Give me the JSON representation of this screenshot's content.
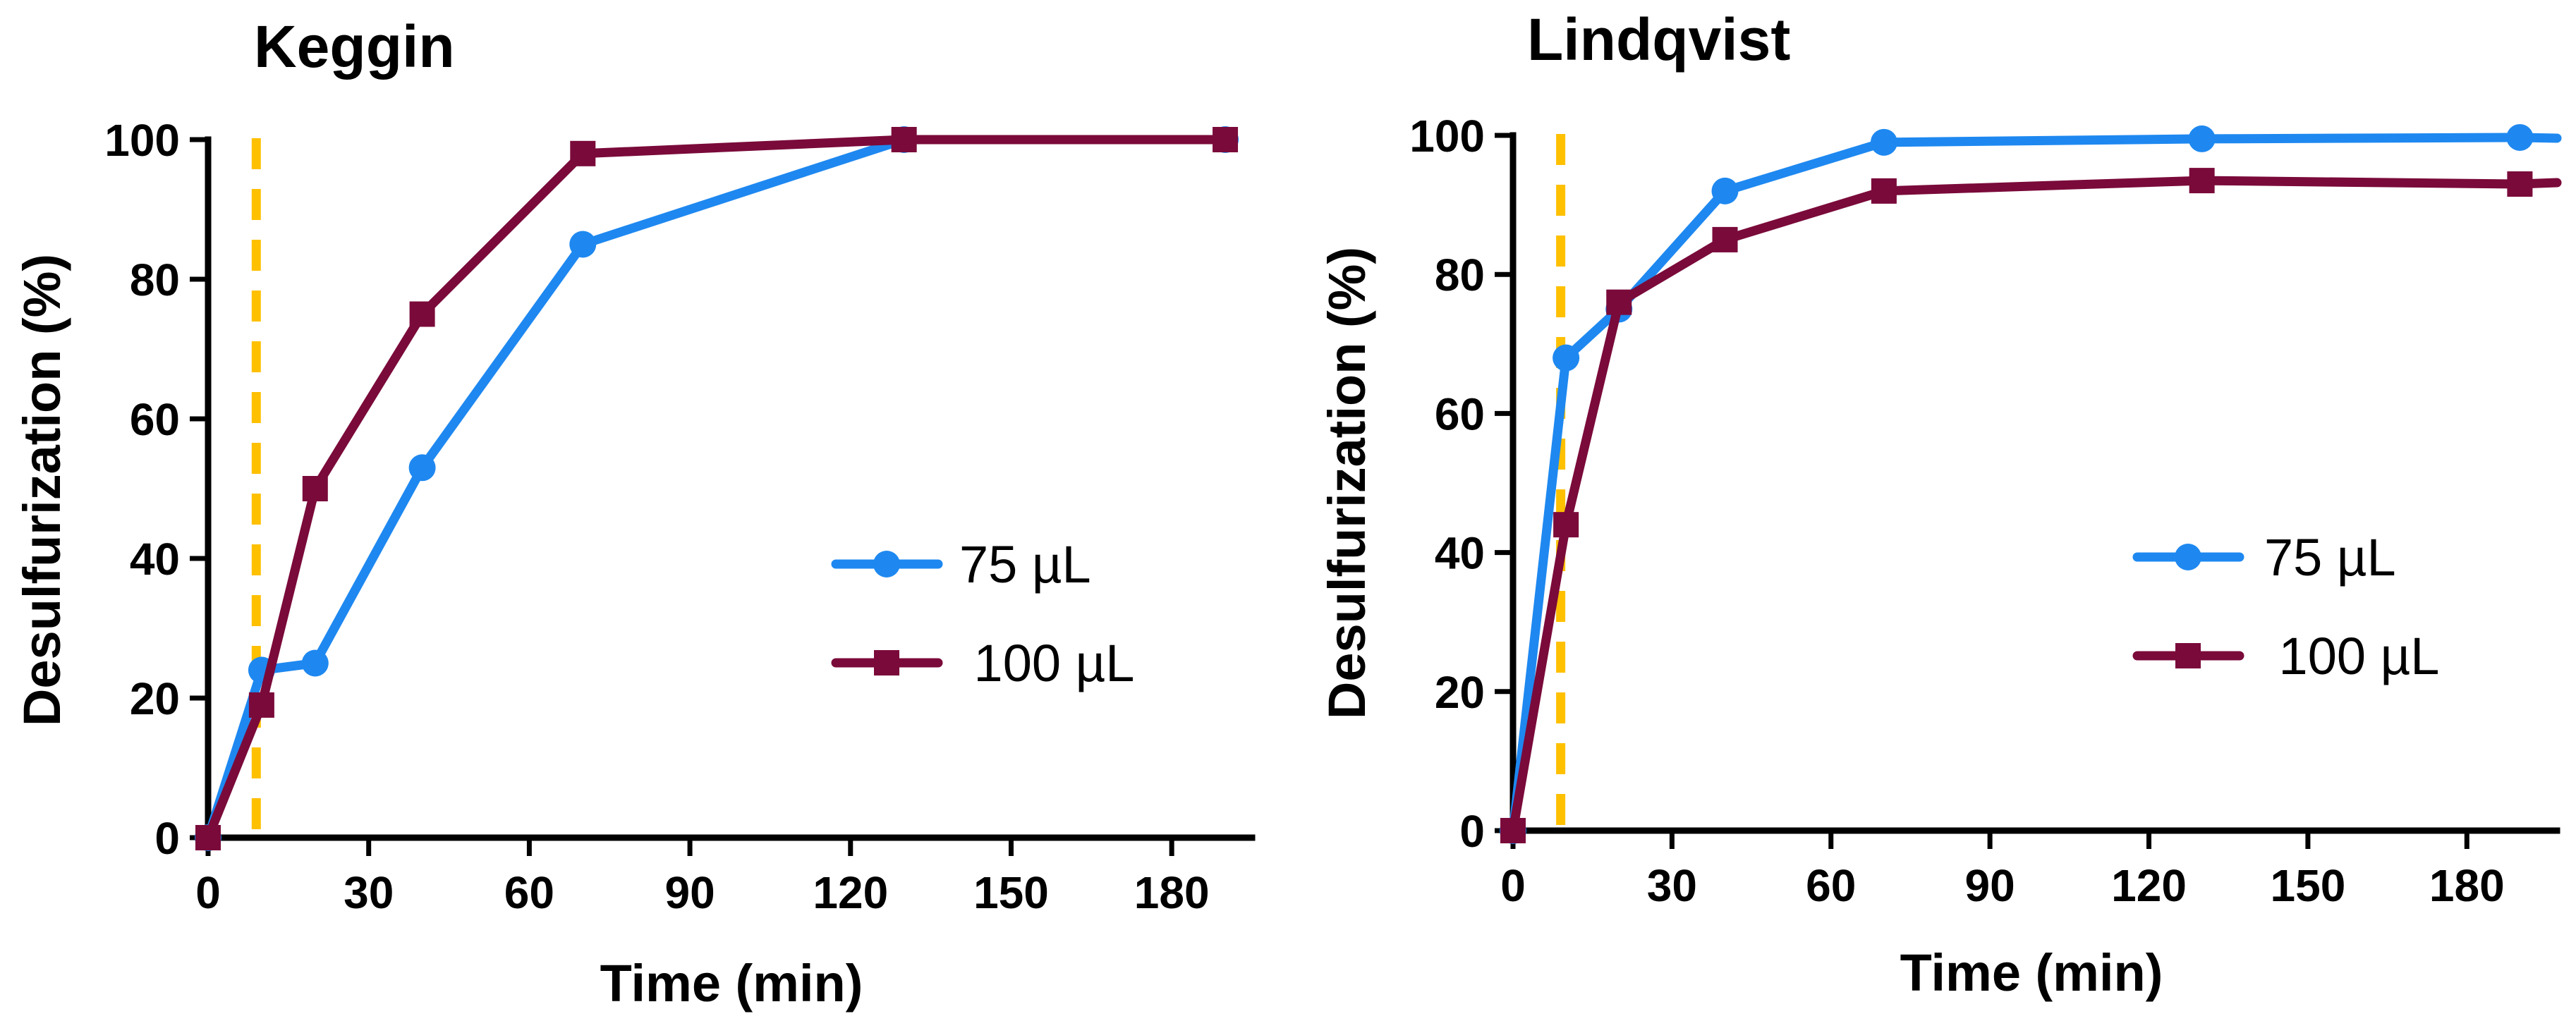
{
  "chart_data": [
    {
      "type": "line",
      "title": "Keggin",
      "xlabel": "Time (min)",
      "ylabel": "Desulfurization (%)",
      "xlim": [
        0,
        195
      ],
      "ylim": [
        0,
        100
      ],
      "xticks": [
        0,
        30,
        60,
        90,
        120,
        150,
        180
      ],
      "yticks": [
        0,
        20,
        40,
        60,
        80,
        100
      ],
      "xtick_labels": [
        "0",
        "30",
        "60",
        "90",
        "120",
        "150",
        "180"
      ],
      "ytick_labels": [
        "0",
        "20",
        "40",
        "60",
        "80",
        "100"
      ],
      "vline": {
        "x": 9,
        "color": "#FFC000",
        "style": "dashed"
      },
      "legend_position": "right",
      "series": [
        {
          "name": "75 µL",
          "legend_label": "75 µL",
          "marker": "circle",
          "color": "#1E88F0",
          "x": [
            0,
            10,
            20,
            40,
            70,
            130,
            190
          ],
          "y": [
            0,
            24,
            25,
            53,
            85,
            100,
            100
          ]
        },
        {
          "name": "100 µL",
          "legend_label": " 100 µL",
          "marker": "square",
          "color": "#7A0A3A",
          "x": [
            0,
            10,
            20,
            40,
            70,
            130,
            190
          ],
          "y": [
            0,
            19,
            50,
            75,
            98,
            100,
            100
          ]
        }
      ]
    },
    {
      "type": "line",
      "title": "Lindqvist",
      "xlabel": "Time (min)",
      "ylabel": "Desulfurization (%)",
      "xlim": [
        0,
        197
      ],
      "ylim": [
        0,
        100
      ],
      "xticks": [
        0,
        30,
        60,
        90,
        120,
        150,
        180
      ],
      "yticks": [
        0,
        20,
        40,
        60,
        80,
        100
      ],
      "xtick_labels": [
        "0",
        "30",
        "60",
        "90",
        "120",
        "150",
        "180"
      ],
      "ytick_labels": [
        "0",
        "20",
        "40",
        "60",
        "80",
        "100"
      ],
      "vline": {
        "x": 9,
        "color": "#FFC000",
        "style": "dashed"
      },
      "legend_position": "right",
      "series": [
        {
          "name": "75 µL",
          "legend_label": "75 µL",
          "marker": "circle",
          "color": "#1E88F0",
          "x": [
            0,
            10,
            20,
            40,
            70,
            130,
            190,
            197
          ],
          "y": [
            0,
            68,
            75,
            92,
            99,
            99.5,
            99.7,
            99.6
          ],
          "markers_on": [
            0,
            1,
            2,
            3,
            4,
            5,
            6
          ]
        },
        {
          "name": "100 µL",
          "legend_label": " 100 µL",
          "marker": "square",
          "color": "#7A0A3A",
          "x": [
            0,
            10,
            20,
            40,
            70,
            130,
            190,
            197
          ],
          "y": [
            0,
            44,
            76,
            85,
            92,
            93.5,
            93,
            93.2
          ],
          "markers_on": [
            0,
            1,
            2,
            3,
            4,
            5,
            6
          ]
        }
      ]
    }
  ]
}
